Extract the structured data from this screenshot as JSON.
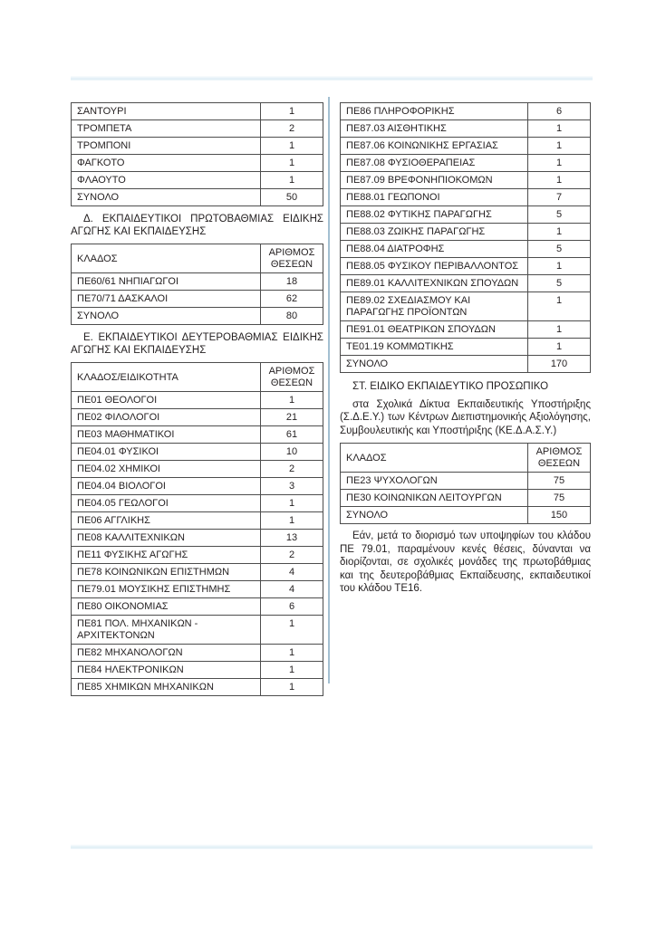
{
  "colors": {
    "table_border": "#4d4d4d",
    "text": "#231f20",
    "column_separator": "#a3bfd1",
    "page_rule": "#dfeef5"
  },
  "left_column": {
    "music_table": {
      "rows": [
        [
          "ΣΑΝΤΟΥΡΙ",
          "1"
        ],
        [
          "ΤΡΟΜΠΕΤΑ",
          "2"
        ],
        [
          "ΤΡΟΜΠΟΝΙ",
          "1"
        ],
        [
          "ΦΑΓΚΟΤΟ",
          "1"
        ],
        [
          "ΦΛΑΟΥΤΟ",
          "1"
        ],
        [
          "ΣΥΝΟΛΟ",
          "50"
        ]
      ]
    },
    "section_d": {
      "heading": "Δ. ΕΚΠΑΙΔΕΥΤΙΚΟΙ ΠΡΩΤΟΒΑΘΜΙΑΣ ΕΙΔΙΚΗΣ ΑΓΩΓΗΣ ΚΑΙ ΕΚΠΑΙΔΕΥΣΗΣ",
      "table": {
        "header": [
          "ΚΛΑΔΟΣ",
          "ΑΡΙΘΜΟΣ ΘΕΣΕΩΝ"
        ],
        "rows": [
          [
            "ΠΕ60/61 ΝΗΠΙΑΓΩΓΟΙ",
            "18"
          ],
          [
            "ΠΕ70/71 ΔΑΣΚΑΛΟΙ",
            "62"
          ],
          [
            "ΣΥΝΟΛΟ",
            "80"
          ]
        ]
      }
    },
    "section_e": {
      "heading": "Ε. ΕΚΠΑΙΔΕΥΤΙΚΟΙ ΔΕΥΤΕΡΟΒΑΘΜΙΑΣ ΕΙΔΙΚΗΣ ΑΓΩΓΗΣ ΚΑΙ ΕΚΠΑΙΔΕΥΣΗΣ",
      "table": {
        "header": [
          "ΚΛΑΔΟΣ/ΕΙΔΙΚΟΤΗΤΑ",
          "ΑΡΙΘΜΟΣ ΘΕΣΕΩΝ"
        ],
        "rows": [
          [
            "ΠΕ01 ΘΕΟΛΟΓΟΙ",
            "1"
          ],
          [
            "ΠΕ02 ΦΙΛΟΛΟΓΟΙ",
            "21"
          ],
          [
            "ΠΕ03 ΜΑΘΗΜΑΤΙΚΟΙ",
            "61"
          ],
          [
            "ΠΕ04.01 ΦΥΣΙΚΟΙ",
            "10"
          ],
          [
            "ΠΕ04.02 ΧΗΜΙΚΟΙ",
            "2"
          ],
          [
            "ΠΕ04.04 ΒΙΟΛΟΓΟΙ",
            "3"
          ],
          [
            "ΠΕ04.05 ΓΕΩΛΟΓΟΙ",
            "1"
          ],
          [
            "ΠΕ06 ΑΓΓΛΙΚΗΣ",
            "1"
          ],
          [
            "ΠΕ08 ΚΑΛΛΙΤΕΧΝΙΚΩΝ",
            "13"
          ],
          [
            "ΠΕ11 ΦΥΣΙΚΗΣ ΑΓΩΓΗΣ",
            "2"
          ],
          [
            "ΠΕ78 ΚΟΙΝΩΝΙΚΩΝ ΕΠΙΣΤΗΜΩΝ",
            "4"
          ],
          [
            "ΠΕ79.01 ΜΟΥΣΙΚΗΣ ΕΠΙΣΤΗΜΗΣ",
            "4"
          ],
          [
            "ΠΕ80 ΟΙΚΟΝΟΜΙΑΣ",
            "6"
          ],
          [
            "ΠΕ81 ΠΟΛ. ΜΗΧΑΝΙΚΩΝ - ΑΡΧΙΤΕΚΤΟΝΩΝ",
            "1"
          ],
          [
            "ΠΕ82 ΜΗΧΑΝΟΛΟΓΩΝ",
            "1"
          ],
          [
            "ΠΕ84 ΗΛΕΚΤΡΟΝΙΚΩΝ",
            "1"
          ],
          [
            "ΠΕ85 ΧΗΜΙΚΩΝ ΜΗΧΑΝΙΚΩΝ",
            "1"
          ]
        ]
      }
    }
  },
  "right_column": {
    "secondary_table_continued": {
      "rows": [
        [
          "ΠΕ86 ΠΛΗΡΟΦΟΡΙΚΗΣ",
          "6"
        ],
        [
          "ΠΕ87.03 ΑΙΣΘΗΤΙΚΗΣ",
          "1"
        ],
        [
          "ΠΕ87.06 ΚΟΙΝΩΝΙΚΗΣ ΕΡΓΑΣΙΑΣ",
          "1"
        ],
        [
          "ΠΕ87.08 ΦΥΣΙΟΘΕΡΑΠΕΙΑΣ",
          "1"
        ],
        [
          "ΠΕ87.09 ΒΡΕΦΟΝΗΠΙΟΚΟΜΩΝ",
          "1"
        ],
        [
          "ΠΕ88.01 ΓΕΩΠΟΝΟΙ",
          "7"
        ],
        [
          "ΠΕ88.02 ΦΥΤΙΚΗΣ ΠΑΡΑΓΩΓΗΣ",
          "5"
        ],
        [
          "ΠΕ88.03 ΖΩΙΚΗΣ ΠΑΡΑΓΩΓΗΣ",
          "1"
        ],
        [
          "ΠΕ88.04 ΔΙΑΤΡΟΦΗΣ",
          "5"
        ],
        [
          "ΠΕ88.05 ΦΥΣΙΚΟΥ ΠΕΡΙΒΑΛΛΟΝΤΟΣ",
          "1"
        ],
        [
          "ΠΕ89.01 ΚΑΛΛΙΤΕΧΝΙΚΩΝ ΣΠΟΥΔΩΝ",
          "5"
        ],
        [
          "ΠΕ89.02 ΣΧΕΔΙΑΣΜΟΥ ΚΑΙ ΠΑΡΑΓΩΓΗΣ ΠΡΟΪΟΝΤΩΝ",
          "1"
        ],
        [
          "ΠΕ91.01 ΘΕΑΤΡΙΚΩΝ ΣΠΟΥΔΩΝ",
          "1"
        ],
        [
          "ΤΕ01.19 ΚΟΜΜΩΤΙΚΗΣ",
          "1"
        ],
        [
          "ΣΥΝΟΛΟ",
          "170"
        ]
      ]
    },
    "section_st": {
      "heading": "ΣΤ. ΕΙΔΙΚΟ ΕΚΠΑΙΔΕΥΤΙΚΟ ΠΡΟΣΩΠΙΚΟ",
      "intro": "στα Σχολικά Δίκτυα Εκπαιδευτικής Υποστήριξης (Σ.Δ.Ε.Υ.) των Κέντρων Διεπιστημονικής Αξιολόγησης, Συμβουλευτικής και Υποστήριξης (ΚΕ.Δ.Α.Σ.Υ.)",
      "table": {
        "header": [
          "ΚΛΑΔΟΣ",
          "ΑΡΙΘΜΟΣ ΘΕΣΕΩΝ"
        ],
        "rows": [
          [
            "ΠΕ23 ΨΥΧΟΛΟΓΩΝ",
            "75"
          ],
          [
            "ΠΕ30 ΚΟΙΝΩΝΙΚΩΝ ΛΕΙΤΟΥΡΓΩΝ",
            "75"
          ],
          [
            "ΣΥΝΟΛΟ",
            "150"
          ]
        ]
      },
      "note": "Εάν, μετά το διορισμό των υποψηφίων του κλάδου ΠΕ 79.01, παραμένουν κενές θέσεις, δύνανται να διορίζονται, σε σχολικές μονάδες της πρωτοβάθμιας και της δευτεροβάθμιας Εκπαίδευσης, εκπαιδευτικοί του κλάδου ΤΕ16."
    }
  }
}
